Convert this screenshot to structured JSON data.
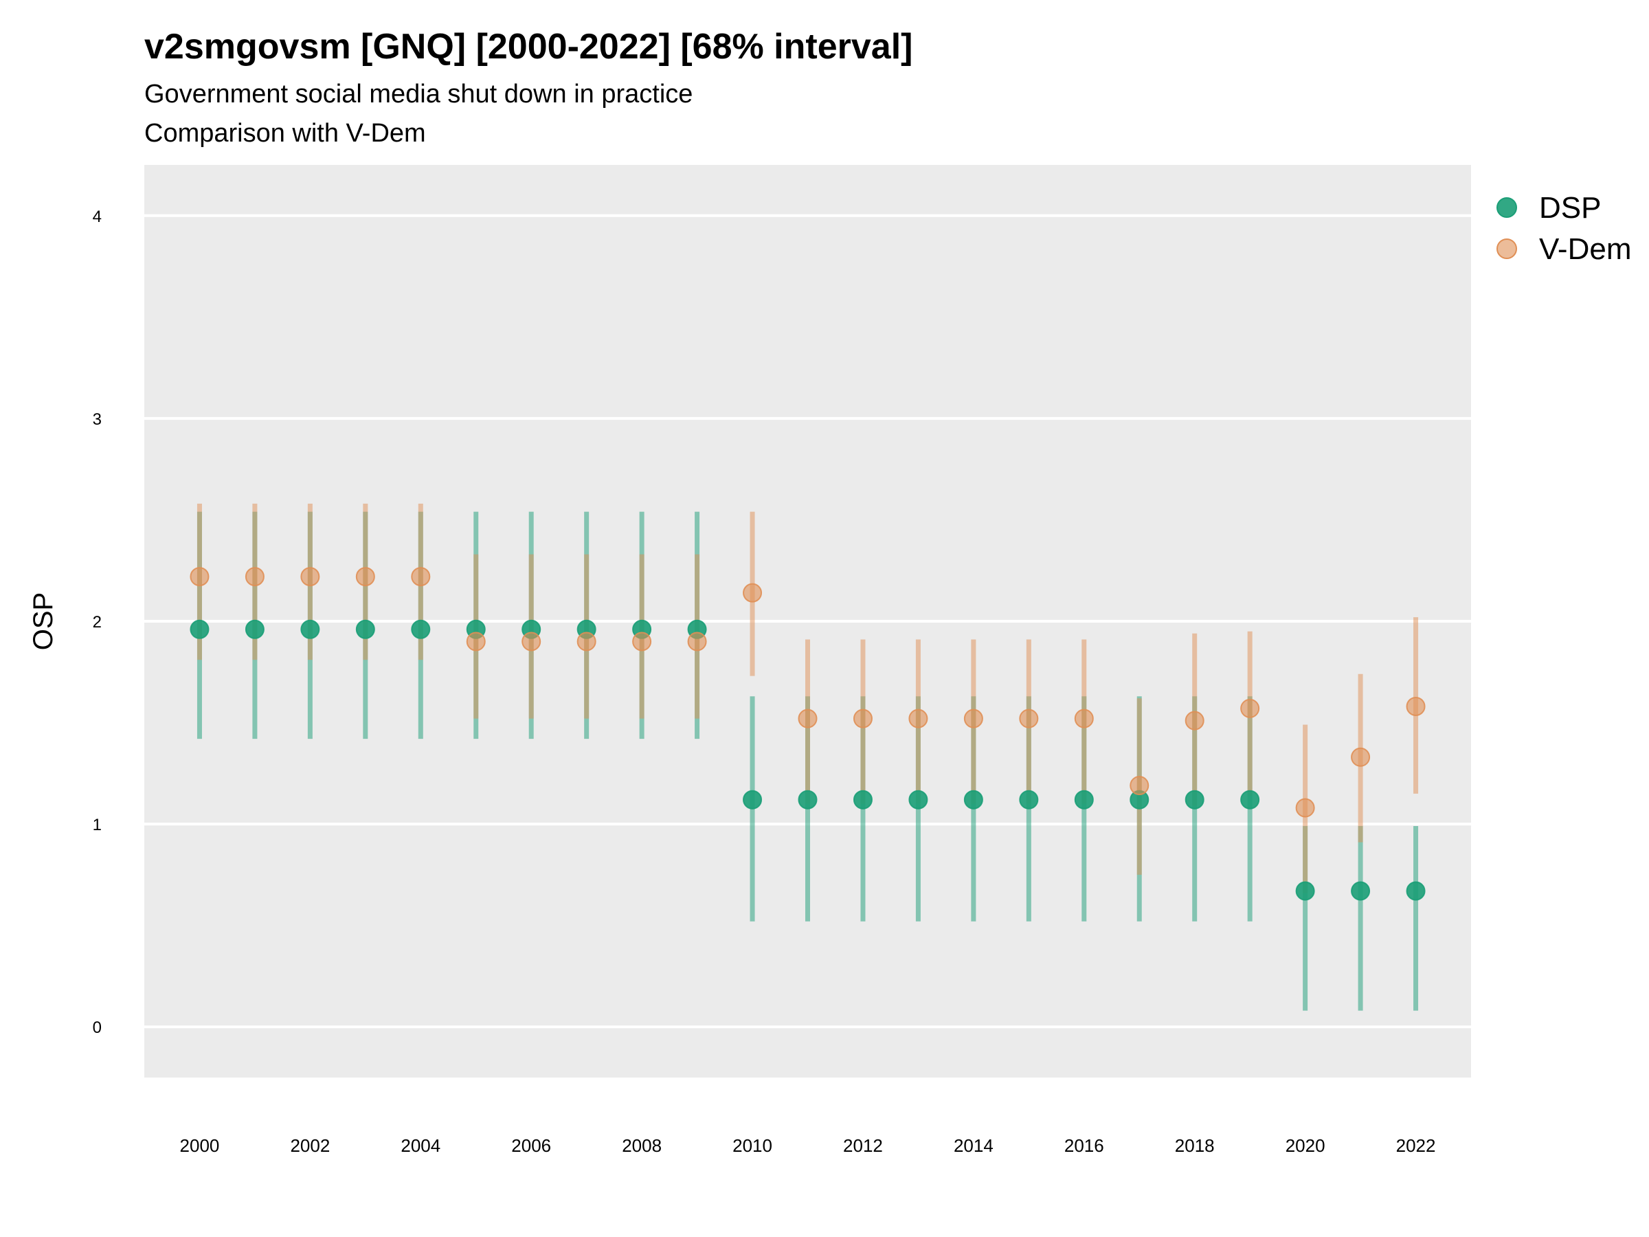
{
  "chart_data": {
    "type": "scatter",
    "title": "v2smgovsm [GNQ] [2000-2022] [68% interval]",
    "subtitle": "Government social media shut down in practice",
    "caption": "Comparison with V-Dem",
    "xlabel": "",
    "ylabel": "OSP",
    "xlim": [
      1999,
      2023
    ],
    "ylim": [
      -0.25,
      4.25
    ],
    "x_ticks": [
      2000,
      2002,
      2004,
      2006,
      2008,
      2010,
      2012,
      2014,
      2016,
      2018,
      2020,
      2022
    ],
    "y_ticks": [
      0,
      1,
      2,
      3,
      4
    ],
    "grid": true,
    "legend_position": "top-right",
    "x": [
      2000,
      2001,
      2002,
      2003,
      2004,
      2005,
      2006,
      2007,
      2008,
      2009,
      2010,
      2011,
      2012,
      2013,
      2014,
      2015,
      2016,
      2017,
      2018,
      2019,
      2020,
      2021,
      2022
    ],
    "series": [
      {
        "name": "DSP",
        "color": "#1b9e77",
        "values": [
          1.96,
          1.96,
          1.96,
          1.96,
          1.96,
          1.96,
          1.96,
          1.96,
          1.96,
          1.96,
          1.12,
          1.12,
          1.12,
          1.12,
          1.12,
          1.12,
          1.12,
          1.12,
          1.12,
          1.12,
          0.67,
          0.67,
          0.67
        ],
        "lower": [
          1.42,
          1.42,
          1.42,
          1.42,
          1.42,
          1.42,
          1.42,
          1.42,
          1.42,
          1.42,
          0.52,
          0.52,
          0.52,
          0.52,
          0.52,
          0.52,
          0.52,
          0.52,
          0.52,
          0.52,
          0.08,
          0.08,
          0.08
        ],
        "upper": [
          2.54,
          2.54,
          2.54,
          2.54,
          2.54,
          2.54,
          2.54,
          2.54,
          2.54,
          2.54,
          1.63,
          1.63,
          1.63,
          1.63,
          1.63,
          1.63,
          1.63,
          1.63,
          1.63,
          1.63,
          0.99,
          0.99,
          0.99
        ]
      },
      {
        "name": "V-Dem",
        "color": "#e08f55",
        "values": [
          2.22,
          2.22,
          2.22,
          2.22,
          2.22,
          1.9,
          1.9,
          1.9,
          1.9,
          1.9,
          2.14,
          1.52,
          1.52,
          1.52,
          1.52,
          1.52,
          1.52,
          1.19,
          1.51,
          1.57,
          1.08,
          1.33,
          1.58
        ],
        "lower": [
          1.81,
          1.81,
          1.81,
          1.81,
          1.81,
          1.52,
          1.52,
          1.52,
          1.52,
          1.52,
          1.73,
          1.1,
          1.1,
          1.1,
          1.1,
          1.1,
          1.1,
          0.75,
          1.09,
          1.14,
          0.66,
          0.91,
          1.15
        ],
        "upper": [
          2.58,
          2.58,
          2.58,
          2.58,
          2.58,
          2.33,
          2.33,
          2.33,
          2.33,
          2.33,
          2.54,
          1.91,
          1.91,
          1.91,
          1.91,
          1.91,
          1.91,
          1.62,
          1.94,
          1.95,
          1.49,
          1.74,
          2.02
        ]
      }
    ]
  }
}
